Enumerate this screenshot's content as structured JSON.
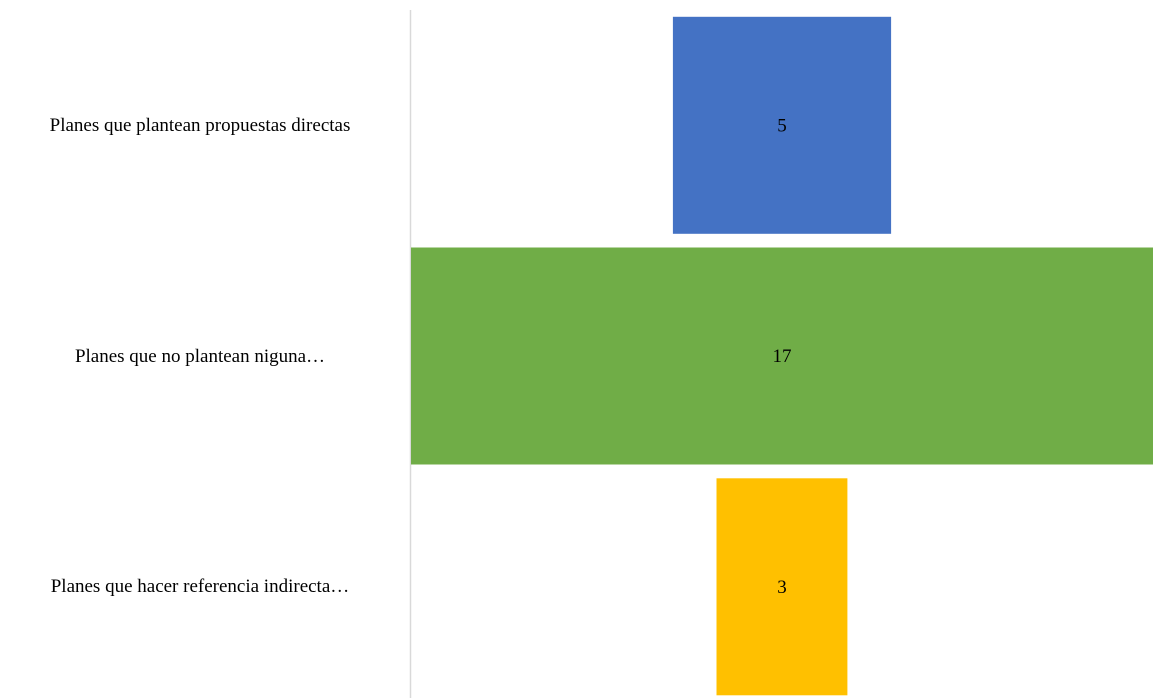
{
  "chart_data": {
    "type": "bar",
    "orientation": "horizontal-centered",
    "categories": [
      "Planes que plantean propuestas directas",
      "Planes que no plantean niguna…",
      "Planes que hacer referencia indirecta…"
    ],
    "values": [
      5,
      17,
      3
    ],
    "colors": [
      "#4472C4",
      "#70AD47",
      "#FFC000"
    ],
    "title": "",
    "xlabel": "",
    "ylabel": "",
    "xlim": [
      0,
      17
    ],
    "grid": false,
    "legend": "none"
  }
}
